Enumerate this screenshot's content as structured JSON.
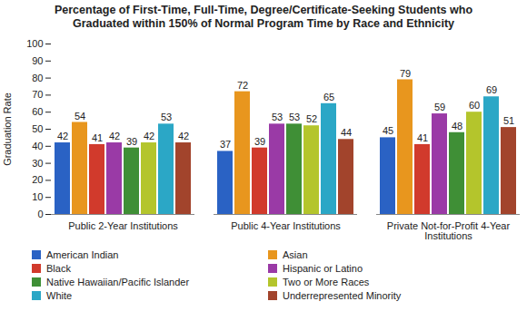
{
  "chart_data": {
    "type": "bar",
    "title": "Percentage of First-Time, Full-Time, Degree/Certificate-Seeking Students who Graduated within 150% of Normal Program Time by Race and Ethnicity",
    "y_label": "Graduation Rate",
    "categories": [
      "Public 2-Year Institutions",
      "Public 4-Year Institutions",
      "Private Not-for-Profit 4-Year Institutions"
    ],
    "series": [
      {
        "name": "American Indian",
        "color": "#2a62c4",
        "values": [
          42,
          37,
          45
        ]
      },
      {
        "name": "Asian",
        "color": "#e8961e",
        "values": [
          54,
          72,
          79
        ]
      },
      {
        "name": "Black",
        "color": "#d13a2c",
        "values": [
          41,
          39,
          41
        ]
      },
      {
        "name": "Hispanic or Latino",
        "color": "#9a3aa6",
        "values": [
          42,
          53,
          59
        ]
      },
      {
        "name": "Native Hawaiian/Pacific Islander",
        "color": "#3f8f36",
        "values": [
          39,
          53,
          48
        ]
      },
      {
        "name": "Two or More Races",
        "color": "#b4c52c",
        "values": [
          42,
          52,
          60
        ]
      },
      {
        "name": "White",
        "color": "#2ba7c6",
        "values": [
          53,
          65,
          69
        ]
      },
      {
        "name": "Underrepresented Minority",
        "color": "#a2442c",
        "values": [
          42,
          44,
          51
        ]
      }
    ],
    "ylim": [
      0,
      100
    ],
    "yticks": [
      0,
      10,
      20,
      30,
      40,
      50,
      60,
      70,
      80,
      90,
      100
    ],
    "grid": false,
    "data_labels": true,
    "legend": "bottom"
  }
}
